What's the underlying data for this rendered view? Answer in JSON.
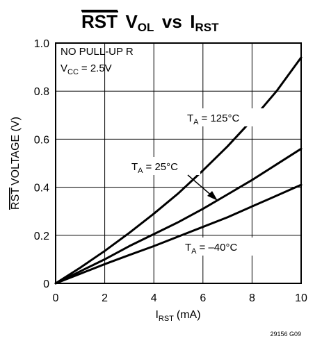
{
  "title": {
    "rst": "RST",
    "v": "V",
    "v_sub": "OL",
    "vs": "vs",
    "i": "I",
    "i_sub": "RST"
  },
  "annotations": {
    "line1": "NO PULL-UP R",
    "vcc_main": "V",
    "vcc_sub": "CC",
    "vcc_value": "= 2.5V"
  },
  "xlabel": {
    "main": "I",
    "sub": "RST",
    "unit": "(mA)"
  },
  "ylabel": {
    "overline_part": "RST",
    "rest": "VOLTAGE (V)"
  },
  "figure_id": "29156 G09",
  "colors": {
    "line": "#000000",
    "grid": "#000000",
    "background": "#ffffff"
  },
  "chart_data": {
    "type": "line",
    "xlabel": "IRST (mA)",
    "ylabel": "RST VOLTAGE (V)",
    "xlim": [
      0,
      10
    ],
    "ylim": [
      0,
      1.0
    ],
    "x_ticks": [
      0,
      2,
      4,
      6,
      8,
      10
    ],
    "x_tick_labels": [
      "0",
      "2",
      "4",
      "6",
      "8",
      "10"
    ],
    "y_ticks": [
      0,
      0.2,
      0.4,
      0.6,
      0.8,
      1.0
    ],
    "y_tick_labels": [
      "0",
      "0.2",
      "0.4",
      "0.6",
      "0.8",
      "1.0"
    ],
    "grid": true,
    "series": [
      {
        "name": "TA = 125°C",
        "label_main": "T",
        "label_sub": "A",
        "label_value": "= 125°C",
        "x": [
          0,
          1,
          2,
          3,
          4,
          5,
          6,
          7,
          8,
          9,
          10
        ],
        "y": [
          0,
          0.065,
          0.135,
          0.21,
          0.29,
          0.375,
          0.47,
          0.57,
          0.68,
          0.8,
          0.94
        ]
      },
      {
        "name": "TA = 25°C",
        "label_main": "T",
        "label_sub": "A",
        "label_value": "= 25°C",
        "x": [
          0,
          1,
          2,
          3,
          4,
          5,
          6,
          7,
          8,
          9,
          10
        ],
        "y": [
          0,
          0.05,
          0.1,
          0.155,
          0.205,
          0.255,
          0.31,
          0.37,
          0.43,
          0.495,
          0.56
        ]
      },
      {
        "name": "TA = -40°C",
        "label_main": "T",
        "label_sub": "A",
        "label_value": "= –40°C",
        "x": [
          0,
          1,
          2,
          3,
          4,
          5,
          6,
          7,
          8,
          9,
          10
        ],
        "y": [
          0,
          0.04,
          0.08,
          0.118,
          0.155,
          0.195,
          0.235,
          0.275,
          0.32,
          0.365,
          0.41
        ]
      }
    ]
  }
}
